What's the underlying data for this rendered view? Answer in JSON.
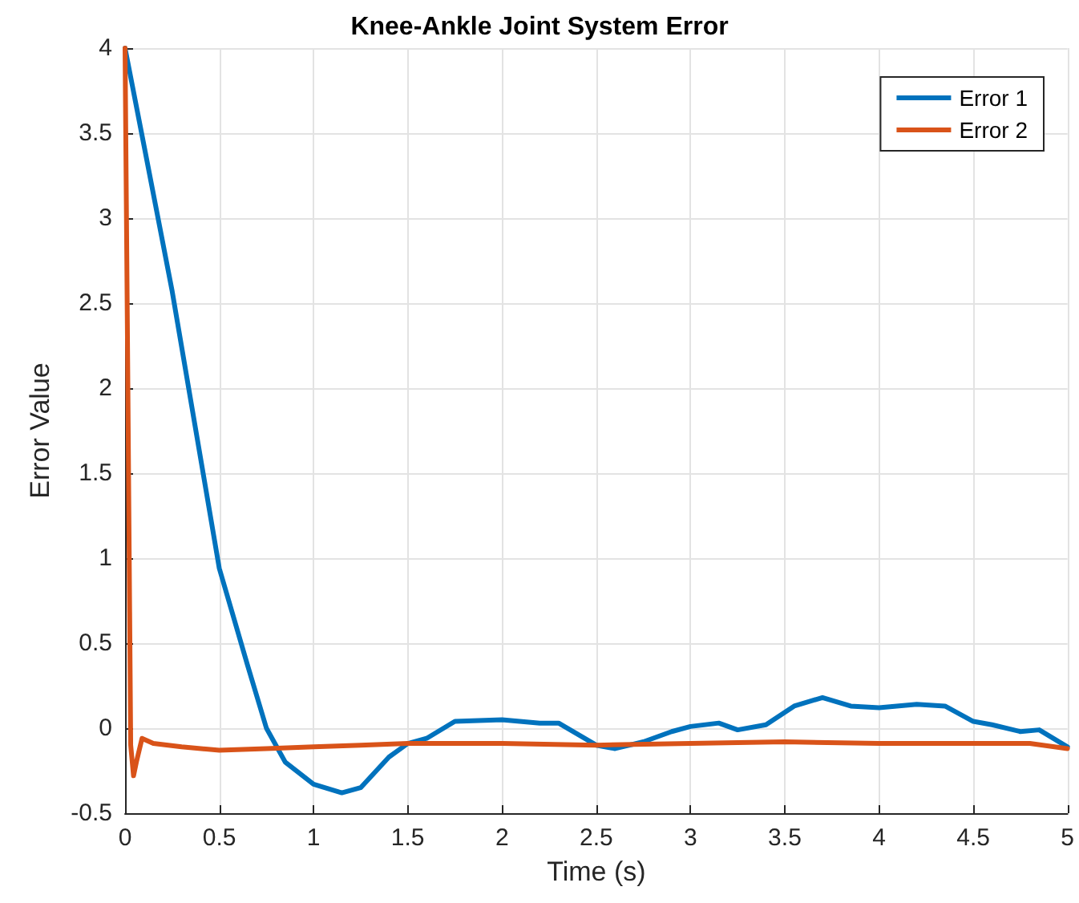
{
  "chart_data": {
    "type": "line",
    "title": "Knee-Ankle Joint System Error",
    "xlabel": "Time (s)",
    "ylabel": "Error Value",
    "xlim": [
      0,
      5
    ],
    "xticks": [
      0,
      0.5,
      1,
      1.5,
      2,
      2.5,
      3,
      3.5,
      4,
      4.5,
      5
    ],
    "ylim": [
      -0.5,
      4
    ],
    "yticks": [
      -0.5,
      0,
      0.5,
      1,
      1.5,
      2,
      2.5,
      3,
      3.5,
      4
    ],
    "grid": true,
    "legend": "top right",
    "marker": "none",
    "line_style": "solid",
    "series": [
      {
        "name": "Error 1",
        "color": "#0072bd",
        "x": [
          0,
          0.1,
          0.25,
          0.5,
          0.65,
          0.75,
          0.85,
          1,
          1.15,
          1.25,
          1.4,
          1.5,
          1.6,
          1.75,
          2,
          2.2,
          2.3,
          2.5,
          2.6,
          2.75,
          2.9,
          3,
          3.15,
          3.25,
          3.4,
          3.55,
          3.7,
          3.85,
          4,
          4.2,
          4.35,
          4.5,
          4.6,
          4.75,
          4.85,
          5
        ],
        "values": [
          4,
          3.43,
          2.57,
          0.94,
          0.37,
          0,
          -0.2,
          -0.33,
          -0.38,
          -0.35,
          -0.17,
          -0.09,
          -0.06,
          0.04,
          0.05,
          0.03,
          0.03,
          -0.1,
          -0.12,
          -0.08,
          -0.02,
          0.01,
          0.03,
          -0.01,
          0.02,
          0.13,
          0.18,
          0.13,
          0.12,
          0.14,
          0.13,
          0.04,
          0.02,
          -0.02,
          -0.01,
          -0.11
        ]
      },
      {
        "name": "Error 2",
        "color": "#d95319",
        "x": [
          0,
          0.015,
          0.03,
          0.045,
          0.06,
          0.09,
          0.15,
          0.3,
          0.5,
          0.75,
          1,
          1.25,
          1.5,
          2,
          2.5,
          3,
          3.5,
          4,
          4.5,
          4.8,
          5
        ],
        "values": [
          4,
          2,
          -0.1,
          -0.28,
          -0.2,
          -0.06,
          -0.09,
          -0.11,
          -0.13,
          -0.12,
          -0.11,
          -0.1,
          -0.09,
          -0.09,
          -0.1,
          -0.09,
          -0.08,
          -0.09,
          -0.09,
          -0.09,
          -0.12
        ]
      }
    ]
  }
}
